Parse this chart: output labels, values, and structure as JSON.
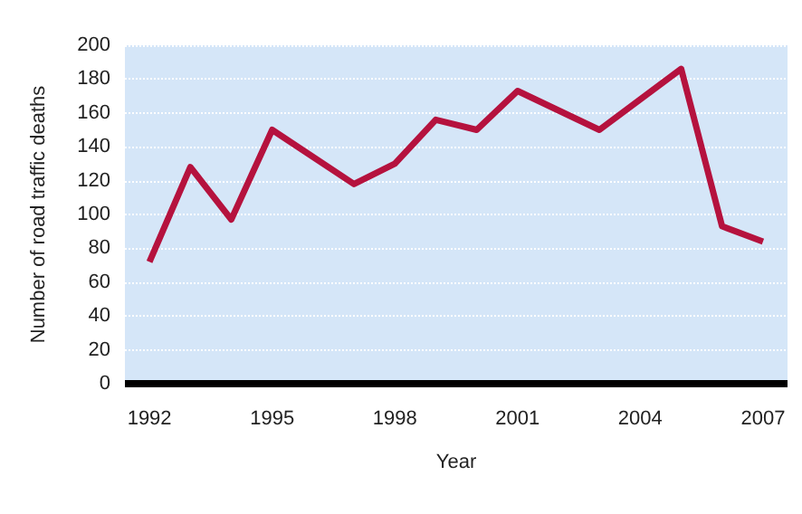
{
  "chart_data": {
    "type": "line",
    "xlabel": "Year",
    "ylabel": "Number of road traffic deaths",
    "x": [
      1992,
      1993,
      1994,
      1995,
      1997,
      1998,
      1999,
      2000,
      2001,
      2003,
      2005,
      2006,
      2007
    ],
    "series": [
      {
        "color": "#b5123e",
        "values": [
          72,
          128,
          97,
          150,
          118,
          130,
          156,
          150,
          173,
          150,
          186,
          93,
          84
        ]
      }
    ],
    "xlim": [
      1991.4,
      2007.6
    ],
    "xticks": [
      1992,
      1995,
      1998,
      2001,
      2004,
      2007
    ],
    "ylim": [
      0,
      200
    ],
    "yticks": [
      0,
      20,
      40,
      60,
      80,
      100,
      120,
      140,
      160,
      180,
      200
    ],
    "grid": "y",
    "marker": "none",
    "line_style": "solid"
  }
}
